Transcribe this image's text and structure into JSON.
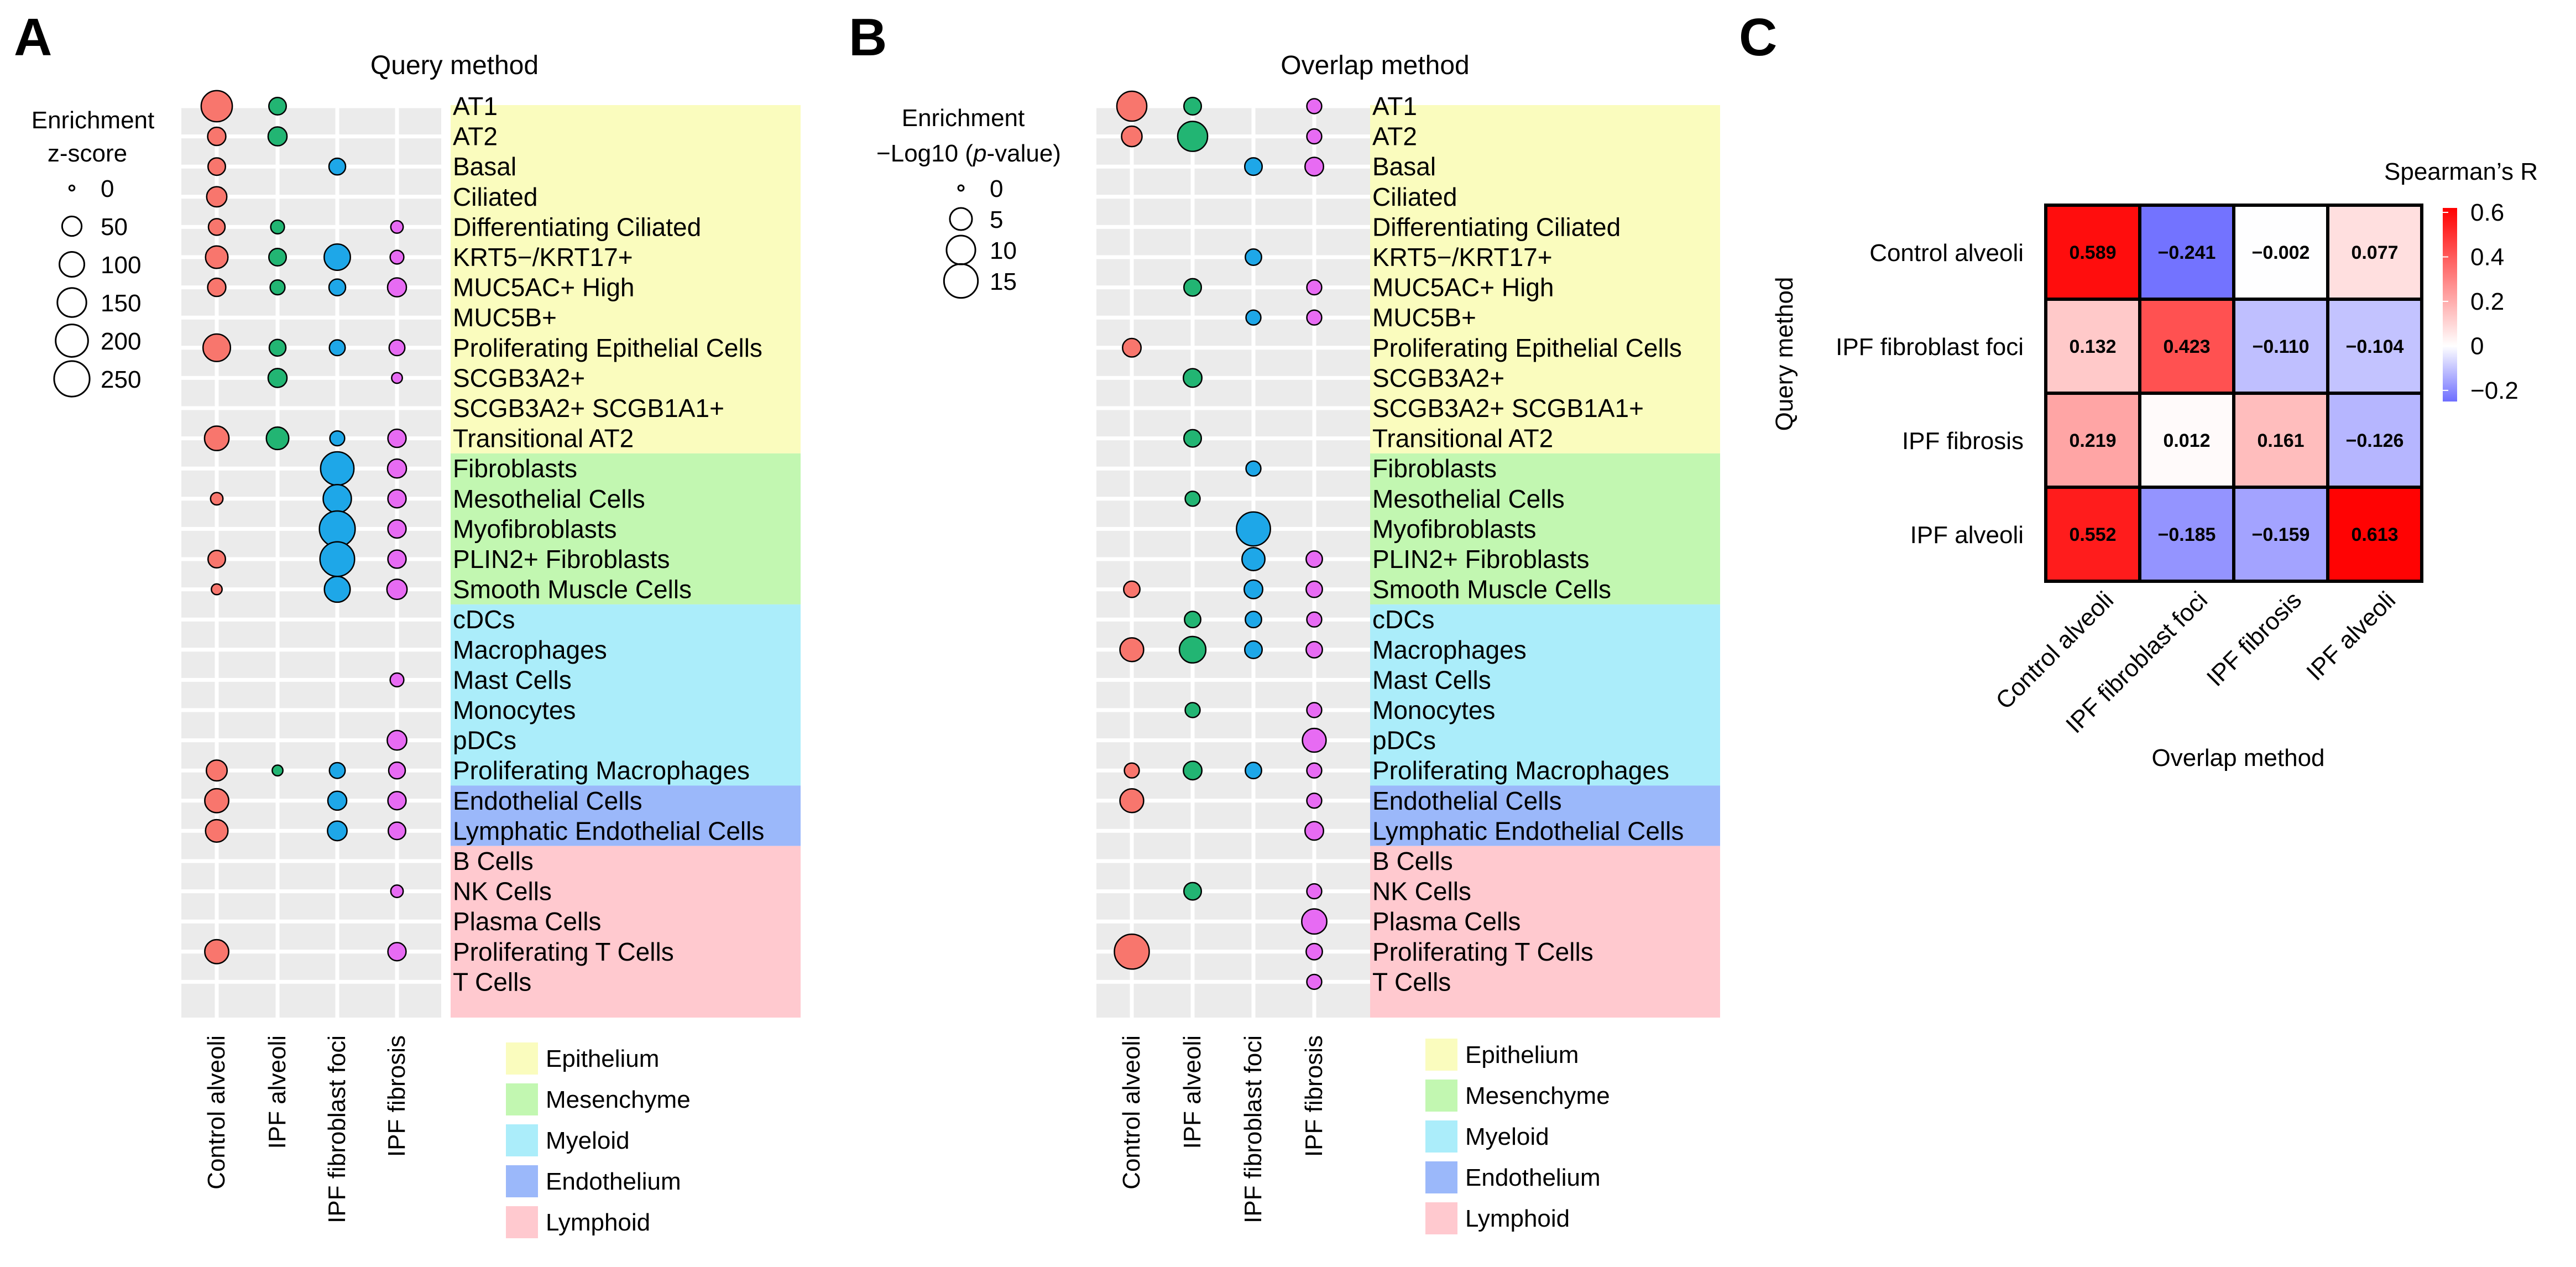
{
  "panel_a": {
    "letter": "A",
    "title": "Query method",
    "legend_title": [
      "Enrichment",
      "z-score"
    ],
    "legend_labels": [
      "0",
      "50",
      "100",
      "150",
      "200",
      "250"
    ]
  },
  "panel_b": {
    "letter": "B",
    "title": "Overlap method",
    "legend_title_line1": "Enrichment",
    "legend_title_line2_pre": "−Log10 (",
    "legend_title_line2_it": "p",
    "legend_title_line2_post": "-value)",
    "legend_labels": [
      "0",
      "5",
      "10",
      "15"
    ]
  },
  "panel_c": {
    "letter": "C",
    "legend_title": "Spearman’s R",
    "legend_ticks": [
      "0.6",
      "0.4",
      "0.2",
      "0",
      "−0.2"
    ],
    "ylabel": "Query method",
    "xlabel": "Overlap method"
  },
  "colors": {
    "control_alveoli": "#F8766D",
    "ipf_alveoli": "#22B573",
    "ipf_fibroblast_foci": "#1EA7E8",
    "ipf_fibrosis": "#E76BF3",
    "epithelium": "#FAFCBE",
    "mesenchyme": "#C2F7B1",
    "myeloid": "#ABEDFA",
    "endothelium": "#9BB8FA",
    "lymphoid": "#FFC9CF",
    "heat_high": "#FF0000",
    "heat_low": "#6E6EFF"
  },
  "lineage_legend": [
    "Epithelium",
    "Mesenchyme",
    "Myeloid",
    "Endothelium",
    "Lymphoid"
  ],
  "cell_types": [
    "AT1",
    "AT2",
    "Basal",
    "Ciliated",
    "Differentiating Ciliated",
    "KRT5−/KRT17+",
    "MUC5AC+ High",
    "MUC5B+",
    "Proliferating Epithelial Cells",
    "SCGB3A2+",
    "SCGB3A2+ SCGB1A1+",
    "Transitional AT2",
    "Fibroblasts",
    "Mesothelial Cells",
    "Myofibroblasts",
    "PLIN2+ Fibroblasts",
    "Smooth Muscle Cells",
    "cDCs",
    "Macrophages",
    "Mast Cells",
    "Monocytes",
    "pDCs",
    "Proliferating Macrophages",
    "Endothelial Cells",
    "Lymphatic Endothelial Cells",
    "B Cells",
    "NK Cells",
    "Plasma Cells",
    "Proliferating T Cells",
    "T Cells"
  ],
  "cell_lineage": [
    "Epithelium",
    "Epithelium",
    "Epithelium",
    "Epithelium",
    "Epithelium",
    "Epithelium",
    "Epithelium",
    "Epithelium",
    "Epithelium",
    "Epithelium",
    "Epithelium",
    "Epithelium",
    "Mesenchyme",
    "Mesenchyme",
    "Mesenchyme",
    "Mesenchyme",
    "Mesenchyme",
    "Myeloid",
    "Myeloid",
    "Myeloid",
    "Myeloid",
    "Myeloid",
    "Myeloid",
    "Endothelium",
    "Endothelium",
    "Lymphoid",
    "Lymphoid",
    "Lymphoid",
    "Lymphoid",
    "Lymphoid"
  ],
  "conditions": [
    "Control alveoli",
    "IPF alveoli",
    "IPF fibroblast foci",
    "IPF fibrosis"
  ],
  "chart_data": [
    {
      "type": "scatter",
      "title": "Query method",
      "size_legend": "Enrichment z-score",
      "size_scale_ticks": [
        0,
        50,
        100,
        150,
        200,
        250
      ],
      "x": [
        "Control alveoli",
        "IPF alveoli",
        "IPF fibroblast foci",
        "IPF fibrosis"
      ],
      "y": "cell_types",
      "values": [
        [
          180,
          35,
          0,
          0
        ],
        [
          40,
          45,
          0,
          0
        ],
        [
          35,
          0,
          30,
          0
        ],
        [
          55,
          0,
          0,
          0
        ],
        [
          30,
          15,
          0,
          10
        ],
        [
          75,
          35,
          115,
          15
        ],
        [
          40,
          20,
          30,
          45
        ],
        [
          0,
          0,
          0,
          0
        ],
        [
          130,
          30,
          25,
          25
        ],
        [
          0,
          45,
          0,
          5
        ],
        [
          0,
          0,
          0,
          0
        ],
        [
          95,
          75,
          20,
          40
        ],
        [
          0,
          0,
          215,
          45
        ],
        [
          10,
          0,
          140,
          40
        ],
        [
          0,
          0,
          255,
          40
        ],
        [
          35,
          0,
          235,
          40
        ],
        [
          5,
          0,
          110,
          55
        ],
        [
          0,
          0,
          0,
          0
        ],
        [
          0,
          0,
          0,
          0
        ],
        [
          0,
          0,
          0,
          15
        ],
        [
          0,
          0,
          0,
          0
        ],
        [
          0,
          0,
          0,
          50
        ],
        [
          60,
          5,
          25,
          30
        ],
        [
          90,
          0,
          45,
          40
        ],
        [
          75,
          0,
          50,
          35
        ],
        [
          0,
          0,
          0,
          0
        ],
        [
          0,
          0,
          0,
          10
        ],
        [
          0,
          0,
          0,
          0
        ],
        [
          90,
          0,
          0,
          40
        ],
        [
          0,
          0,
          0,
          0
        ]
      ]
    },
    {
      "type": "scatter",
      "title": "Overlap method",
      "size_legend": "Enrichment −Log10 (p-value)",
      "size_scale_ticks": [
        0,
        5,
        10,
        15
      ],
      "x": [
        "Control alveoli",
        "IPF alveoli",
        "IPF fibroblast foci",
        "IPF fibrosis"
      ],
      "y": "cell_types",
      "values": [
        [
          11,
          2.5,
          0,
          1.5
        ],
        [
          4,
          11,
          0,
          1.5
        ],
        [
          0,
          0,
          2.5,
          3
        ],
        [
          0,
          0,
          0,
          0
        ],
        [
          0,
          0,
          0,
          0
        ],
        [
          0,
          0,
          2,
          0
        ],
        [
          0,
          2.5,
          0,
          1.5
        ],
        [
          0,
          0,
          1.5,
          1.5
        ],
        [
          3,
          0,
          0,
          0
        ],
        [
          0,
          3,
          0,
          0
        ],
        [
          0,
          0,
          0,
          0
        ],
        [
          0,
          2.5,
          0,
          0
        ],
        [
          0,
          0,
          1.5,
          0
        ],
        [
          0,
          1.5,
          0,
          0
        ],
        [
          0,
          0,
          15,
          0
        ],
        [
          0,
          0,
          5.5,
          2
        ],
        [
          2,
          0,
          3,
          2
        ],
        [
          0,
          2,
          2,
          1.5
        ],
        [
          6,
          8,
          2.5,
          2
        ],
        [
          0,
          0,
          0,
          0
        ],
        [
          0,
          1.5,
          0,
          1.5
        ],
        [
          0,
          0,
          0,
          6
        ],
        [
          1.5,
          3,
          2,
          1.5
        ],
        [
          6,
          0,
          0,
          1.5
        ],
        [
          0,
          0,
          0,
          3
        ],
        [
          0,
          0,
          0,
          0
        ],
        [
          0,
          2.5,
          0,
          1.5
        ],
        [
          0,
          0,
          0,
          7
        ],
        [
          16,
          0,
          0,
          2
        ],
        [
          0,
          0,
          0,
          1.5
        ]
      ]
    },
    {
      "type": "heatmap",
      "title": "",
      "legend_title": "Spearman’s R",
      "xlabel": "Overlap method",
      "ylabel": "Query method",
      "rows": [
        "Control alveoli",
        "IPF fibroblast foci",
        "IPF fibrosis",
        "IPF alveoli"
      ],
      "cols": [
        "Control alveoli",
        "IPF fibroblast foci",
        "IPF fibrosis",
        "IPF alveoli"
      ],
      "display_values": [
        [
          "0.589",
          "−0.241",
          "−0.002",
          "0.077"
        ],
        [
          "0.132",
          "0.423",
          "−0.110",
          "−0.104"
        ],
        [
          "0.219",
          "0.012",
          "0.161",
          "−0.126"
        ],
        [
          "0.552",
          "−0.185",
          "−0.159",
          "0.613"
        ]
      ],
      "values": [
        [
          0.589,
          -0.241,
          -0.002,
          0.077
        ],
        [
          0.132,
          0.423,
          -0.11,
          -0.104
        ],
        [
          0.219,
          0.012,
          0.161,
          -0.126
        ],
        [
          0.552,
          -0.185,
          -0.159,
          0.613
        ]
      ],
      "scale_range": [
        -0.25,
        0.62
      ]
    }
  ]
}
